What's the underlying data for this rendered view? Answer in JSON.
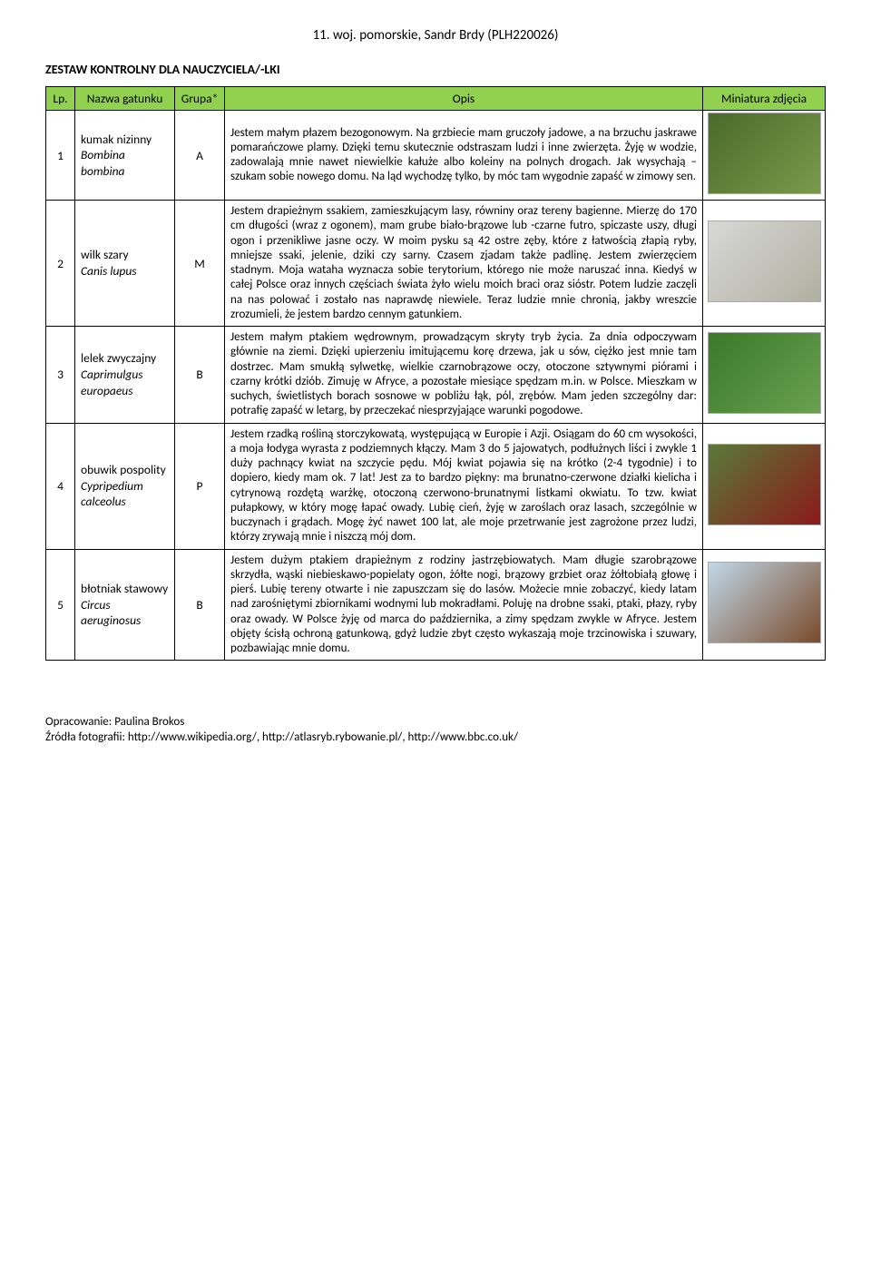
{
  "doc": {
    "title": "11. woj. pomorskie, Sandr Brdy (PLH220026)",
    "section_title": "ZESTAW  KONTROLNY  DLA NAUCZYCIELA/-LKI"
  },
  "table": {
    "header_bg": "#92d050",
    "columns": [
      "Lp.",
      "Nazwa gatunku",
      "Grupa*",
      "Opis",
      "Miniatura zdjęcia"
    ],
    "rows": [
      {
        "lp": "1",
        "name_common": "kumak nizinny",
        "name_latin": "Bombina bombina",
        "group": "A",
        "desc": "Jestem małym płazem bezogonowym. Na grzbiecie mam gruczoły jadowe, a na brzuchu jaskrawe pomarańczowe plamy. Dzięki temu skutecznie odstraszam ludzi i inne zwierzęta. Żyję w wodzie, zadowalają mnie nawet niewielkie kałuże albo koleiny na polnych drogach. Jak wysychają – szukam sobie nowego domu. Na ląd wychodzę tylko, by móc tam wygodnie zapaść w zimowy sen.",
        "thumb_class": "ph1"
      },
      {
        "lp": "2",
        "name_common": "wilk szary",
        "name_latin": "Canis lupus",
        "group": "M",
        "desc": "Jestem drapieżnym ssakiem, zamieszkującym lasy, równiny oraz tereny bagienne. Mierzę do 170 cm długości (wraz z ogonem), mam grube biało-brązowe lub -czarne futro, spiczaste uszy, długi ogon i przenikliwe jasne oczy. W moim pysku są 42 ostre zęby, które z łatwością złapią ryby, mniejsze ssaki, jelenie, dziki czy sarny. Czasem zjadam także padlinę. Jestem zwierzęciem stadnym. Moja wataha wyznacza sobie terytorium, którego nie może naruszać inna. Kiedyś w całej Polsce oraz innych częściach świata żyło wielu moich braci oraz sióstr. Potem ludzie zaczęli na nas polować i zostało nas naprawdę niewiele. Teraz ludzie mnie chronią, jakby wreszcie zrozumieli, że jestem bardzo cennym gatunkiem.",
        "thumb_class": "ph2"
      },
      {
        "lp": "3",
        "name_common": "lelek zwyczajny",
        "name_latin": "Caprimulgus europaeus",
        "group": "B",
        "desc": "Jestem małym ptakiem wędrownym, prowadzącym skryty tryb życia. Za dnia odpoczywam głównie na ziemi. Dzięki upierzeniu imitującemu korę drzewa, jak u sów, ciężko jest mnie tam dostrzec. Mam smukłą sylwetkę, wielkie czarnobrązowe oczy, otoczone sztywnymi piórami i czarny krótki dziób. Zimuję w Afryce, a pozostałe miesiące spędzam m.in. w Polsce. Mieszkam w suchych, świetlistych borach sosnowe w pobliżu łąk, pól, zrębów. Mam jeden szczególny dar: potrafię zapaść w letarg, by przeczekać niesprzyjające warunki pogodowe.",
        "thumb_class": "ph3"
      },
      {
        "lp": "4",
        "name_common": "obuwik pospolity",
        "name_latin": "Cypripedium calceolus",
        "group": "P",
        "desc": "Jestem rzadką rośliną storczykowatą, występującą w Europie i Azji. Osiągam do 60 cm wysokości, a moja łodyga wyrasta z podziemnych kłączy. Mam 3 do 5 jajowatych, podłużnych liści i zwykle 1 duży pachnący kwiat na szczycie pędu. Mój kwiat pojawia się na krótko (2-4 tygodnie) i to dopiero, kiedy mam ok. 7 lat! Jest za to bardzo piękny: ma brunatno-czerwone działki kielicha i cytrynową rozdętą warżkę, otoczoną czerwono-brunatnymi listkami okwiatu. To tzw. kwiat pułapkowy, w który mogę łapać owady. Lubię cień, żyję w zaroślach oraz lasach, szczególnie w buczynach i grądach. Mogę żyć nawet 100 lat, ale moje przetrwanie jest zagrożone przez ludzi, którzy zrywają mnie i niszczą mój dom.",
        "thumb_class": "ph4"
      },
      {
        "lp": "5",
        "name_common": "błotniak stawowy",
        "name_latin": "Circus aeruginosus",
        "group": "B",
        "desc": "Jestem dużym ptakiem drapieżnym z rodziny jastrzębiowatych. Mam długie szarobrązowe skrzydła, wąski niebieskawo-popielaty ogon, żółte nogi, brązowy grzbiet oraz żółtobiałą głowę i pierś. Lubię tereny otwarte i nie zapuszczam się do lasów. Możecie mnie zobaczyć, kiedy latam nad zarośniętymi zbiornikami wodnymi lub mokradłami. Poluję na drobne ssaki, ptaki, płazy, ryby oraz owady. W Polsce żyję od marca do października, a zimy spędzam zwykle w Afryce. Jestem objęty ścisłą ochroną gatunkową, gdyż ludzie zbyt często wykaszają moje trzcinowiska i szuwary, pozbawiając mnie domu.",
        "thumb_class": "ph5"
      }
    ]
  },
  "footer": {
    "line1": "Opracowanie: Paulina Brokos",
    "line2": "Źródła fotografii: http://www.wikipedia.org/, http://atlasryb.rybowanie.pl/, http://www.bbc.co.uk/"
  }
}
